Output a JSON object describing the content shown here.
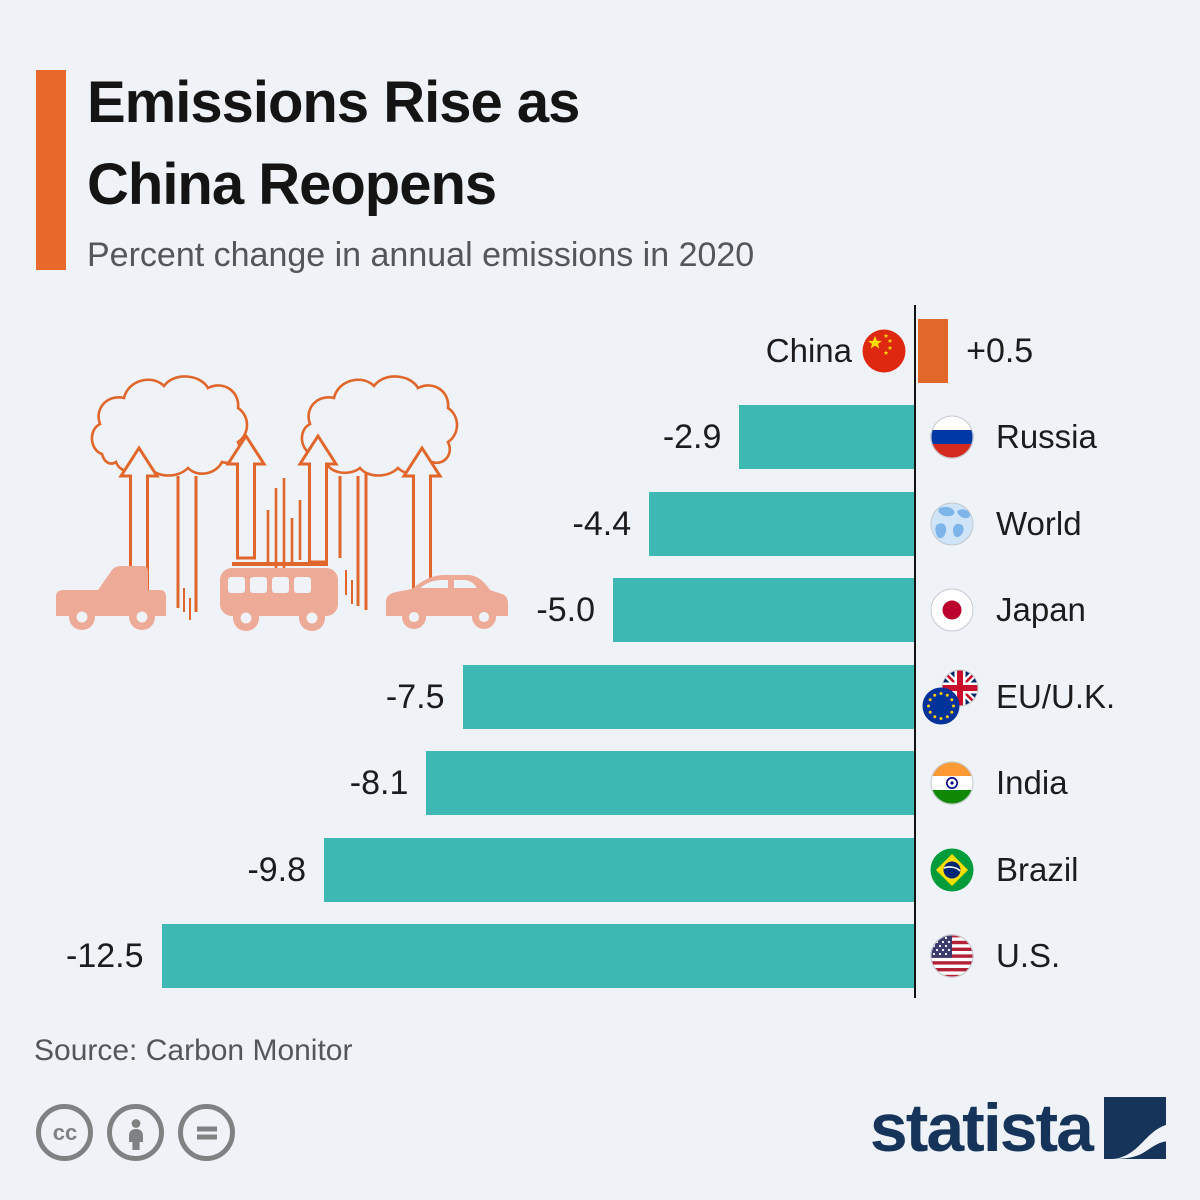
{
  "header": {
    "title_line1": "Emissions Rise as",
    "title_line2": "China Reopens",
    "subtitle": "Percent change in annual emissions in 2020"
  },
  "chart_data": {
    "type": "bar",
    "orientation": "horizontal",
    "title": "Percent change in annual emissions in 2020",
    "xlabel": "",
    "ylabel": "",
    "value_range": [
      -12.5,
      0.5
    ],
    "zero_baseline": true,
    "grid": false,
    "categories": [
      "China",
      "Russia",
      "World",
      "Japan",
      "EU/U.K.",
      "India",
      "Brazil",
      "U.S."
    ],
    "values": [
      0.5,
      -2.9,
      -4.4,
      -5.0,
      -7.5,
      -8.1,
      -9.8,
      -12.5
    ],
    "series": [
      {
        "name": "China",
        "value": 0.5,
        "label": "+0.5",
        "flag_icon": "china-flag-icon"
      },
      {
        "name": "Russia",
        "value": -2.9,
        "label": "-2.9",
        "flag_icon": "russia-flag-icon"
      },
      {
        "name": "World",
        "value": -4.4,
        "label": "-4.4",
        "flag_icon": "world-globe-icon"
      },
      {
        "name": "Japan",
        "value": -5.0,
        "label": "-5.0",
        "flag_icon": "japan-flag-icon"
      },
      {
        "name": "EU/U.K.",
        "value": -7.5,
        "label": "-7.5",
        "flag_icon": "eu-uk-flag-icon"
      },
      {
        "name": "India",
        "value": -8.1,
        "label": "-8.1",
        "flag_icon": "india-flag-icon"
      },
      {
        "name": "Brazil",
        "value": -9.8,
        "label": "-9.8",
        "flag_icon": "brazil-flag-icon"
      },
      {
        "name": "U.S.",
        "value": -12.5,
        "label": "-12.5",
        "flag_icon": "us-flag-icon"
      }
    ],
    "positive_color": "#e2672a",
    "negative_color": "#3db8b2",
    "axis_color": "#121212",
    "legend": null
  },
  "illustration": {
    "name": "cars-emissions-illustration",
    "outline_color": "#e0662b",
    "vehicle_fill_color": "#edaa96"
  },
  "footer": {
    "source": "Source: Carbon Monitor",
    "license_icons": [
      "cc-icon",
      "cc-attribution-icon",
      "cc-equal-icon"
    ],
    "brand": "statista"
  },
  "colors": {
    "background": "#eff3f7",
    "accent_orange": "#e8682c",
    "bar_teal": "#3db8b2",
    "bar_orange": "#e2672a",
    "title_text": "#141414",
    "subtitle_text": "#53575c",
    "brand_navy": "#16335a",
    "license_gray": "#7f8283"
  }
}
